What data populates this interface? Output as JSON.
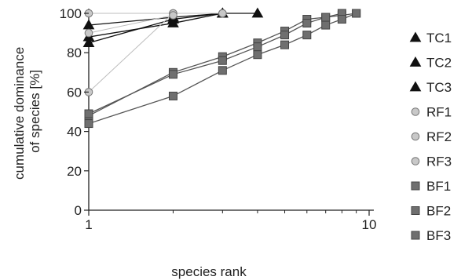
{
  "chart_data": {
    "type": "line",
    "xlabel": "species rank",
    "ylabel": [
      "cumulative dominance",
      "of species [%]"
    ],
    "x_scale": "log",
    "xlim": [
      1,
      10
    ],
    "ylim": [
      0,
      100
    ],
    "x_ticks": [
      1,
      10
    ],
    "y_ticks": [
      0,
      20,
      40,
      60,
      80,
      100
    ],
    "grid": false,
    "legend_position": "right",
    "series": [
      {
        "name": "TC1",
        "marker": "triangle",
        "color": "#111111",
        "line": "#111111",
        "x": [
          1,
          2,
          3,
          4
        ],
        "y": [
          85,
          97,
          100,
          100
        ]
      },
      {
        "name": "TC2",
        "marker": "triangle",
        "color": "#111111",
        "line": "#111111",
        "x": [
          1,
          2,
          3
        ],
        "y": [
          94,
          98,
          100
        ]
      },
      {
        "name": "TC3",
        "marker": "triangle",
        "color": "#111111",
        "line": "#111111",
        "x": [
          1,
          2,
          3
        ],
        "y": [
          88,
          95,
          100
        ]
      },
      {
        "name": "RF1",
        "marker": "circle",
        "color": "#c8c8c8",
        "line": "#bdbdbd",
        "x": [
          1,
          2,
          3
        ],
        "y": [
          100,
          100,
          100
        ]
      },
      {
        "name": "RF2",
        "marker": "circle",
        "color": "#c8c8c8",
        "line": "#bdbdbd",
        "x": [
          1,
          2,
          3
        ],
        "y": [
          60,
          100,
          100
        ]
      },
      {
        "name": "RF3",
        "marker": "circle",
        "color": "#c8c8c8",
        "line": "#bdbdbd",
        "x": [
          1,
          2
        ],
        "y": [
          90,
          99
        ]
      },
      {
        "name": "BF1",
        "marker": "square",
        "color": "#6f6f6f",
        "line": "#555555",
        "x": [
          1,
          2,
          3,
          4,
          5,
          6,
          7,
          8,
          9
        ],
        "y": [
          48,
          70,
          78,
          85,
          91,
          97,
          98,
          99,
          100
        ]
      },
      {
        "name": "BF2",
        "marker": "square",
        "color": "#6f6f6f",
        "line": "#555555",
        "x": [
          1,
          2,
          3,
          4,
          5,
          6,
          7,
          8
        ],
        "y": [
          49,
          69,
          76,
          83,
          89,
          95,
          98,
          100
        ]
      },
      {
        "name": "BF3",
        "marker": "square",
        "color": "#6f6f6f",
        "line": "#555555",
        "x": [
          1,
          2,
          3,
          4,
          5,
          6,
          7,
          8,
          9
        ],
        "y": [
          44,
          58,
          71,
          79,
          84,
          89,
          94,
          97,
          100
        ]
      }
    ]
  }
}
